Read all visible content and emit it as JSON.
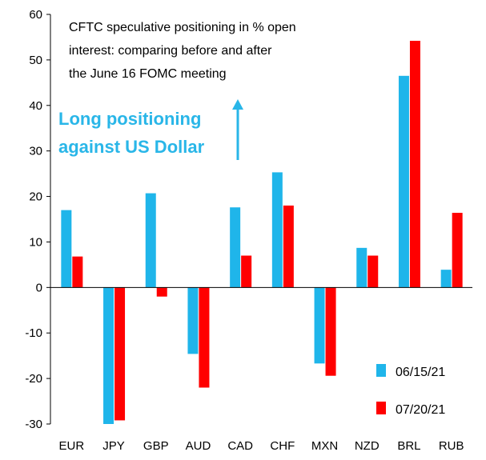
{
  "chart_data": {
    "type": "bar",
    "title_lines": [
      "CFTC speculative positioning in % open",
      "interest: comparing before and after",
      "the June 16 FOMC meeting"
    ],
    "annotation": {
      "lines": [
        "Long positioning",
        "against US Dollar"
      ],
      "color": "#29b6e8"
    },
    "categories": [
      "EUR",
      "JPY",
      "GBP",
      "AUD",
      "CAD",
      "CHF",
      "MXN",
      "NZD",
      "BRL",
      "RUB"
    ],
    "series": [
      {
        "name": "06/15/21",
        "color": "#1fb5ea",
        "values": [
          17,
          -30,
          20.7,
          -14.6,
          17.6,
          25.3,
          -16.7,
          8.7,
          46.5,
          3.9
        ]
      },
      {
        "name": "07/20/21",
        "color": "#ff0000",
        "values": [
          6.8,
          -29.2,
          -2,
          -22,
          7,
          18,
          -19.4,
          7,
          54.2,
          16.4
        ]
      }
    ],
    "ylim": [
      -30,
      60
    ],
    "yticks": [
      -30,
      -20,
      -10,
      0,
      10,
      20,
      30,
      40,
      50,
      60
    ],
    "legend_position": "bottom-right",
    "grid": false
  }
}
